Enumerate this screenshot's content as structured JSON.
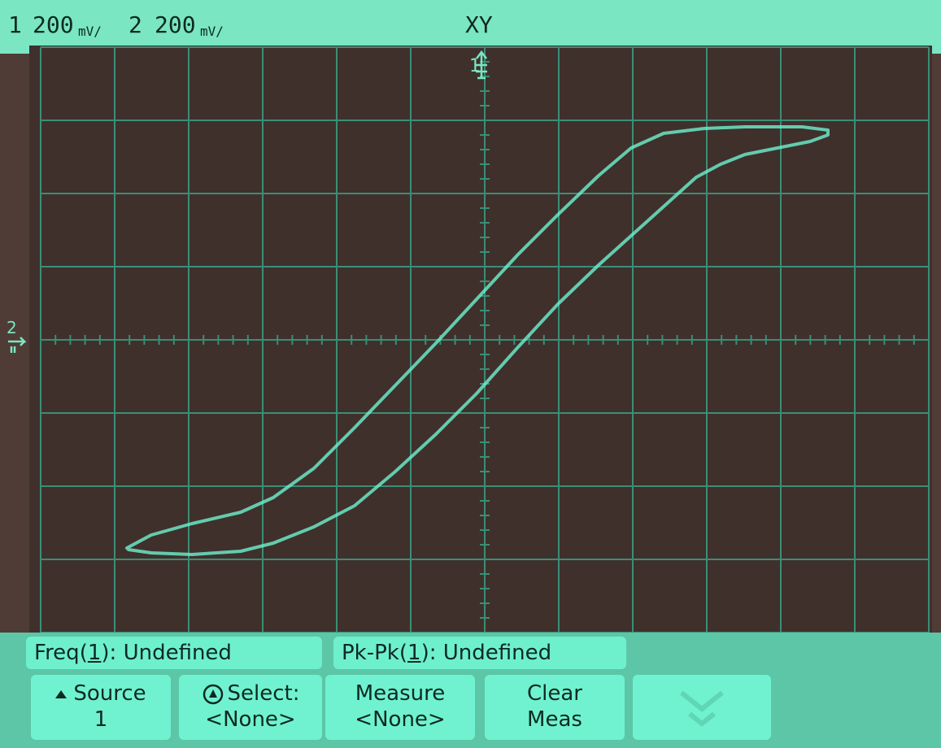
{
  "status_bar": {
    "ch1_label": "1",
    "ch1_scale": "200",
    "ch1_unit": "mV/",
    "ch2_label": "2",
    "ch2_scale": "200",
    "ch2_unit": "mV/",
    "mode": "XY"
  },
  "markers": {
    "ch1_top": "1",
    "ch2_left": "2"
  },
  "measurements": [
    {
      "name": "Freq",
      "channel": "1",
      "value": "Undefined"
    },
    {
      "name": "Pk-Pk",
      "channel": "1",
      "value": "Undefined"
    }
  ],
  "softkeys": [
    {
      "line1": "Source",
      "line2": "1"
    },
    {
      "line1": "Select:",
      "line2": "<None>"
    },
    {
      "line1": "Measure",
      "line2": "<None>"
    },
    {
      "line1": "Clear",
      "line2": "Meas"
    },
    {
      "line1": "",
      "line2": ""
    }
  ],
  "colors": {
    "trace": "#6ef3cf",
    "grid": "#3a8e76",
    "screen_bg": "#3f302c",
    "panel": "#6ef0cd"
  }
}
